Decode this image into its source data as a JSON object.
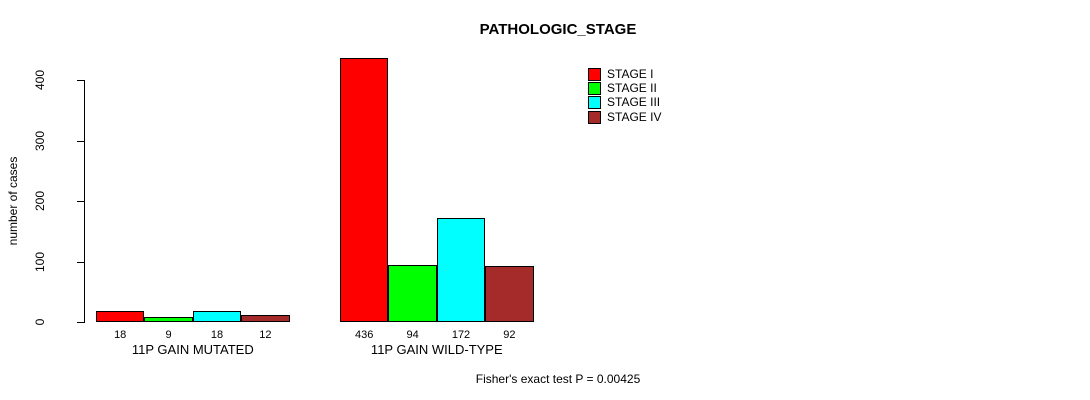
{
  "title": "PATHOLOGIC_STAGE",
  "footer": "Fisher's exact test P = 0.00425",
  "chart_data": {
    "type": "bar",
    "title": "PATHOLOGIC_STAGE",
    "categories": [
      "11P GAIN MUTATED",
      "11P GAIN WILD-TYPE"
    ],
    "series": [
      {
        "name": "STAGE I",
        "color": "#FF0000",
        "values": [
          18,
          436
        ]
      },
      {
        "name": "STAGE II",
        "color": "#00FF00",
        "values": [
          9,
          94
        ]
      },
      {
        "name": "STAGE III",
        "color": "#00FFFF",
        "values": [
          18,
          172
        ]
      },
      {
        "name": "STAGE IV",
        "color": "#A52A2A",
        "values": [
          12,
          92
        ]
      }
    ],
    "xlabel": "",
    "ylabel": "number of cases",
    "yticks": [
      0,
      100,
      200,
      300,
      400
    ],
    "ylim": [
      0,
      400
    ],
    "grid": false,
    "bar_value_labels_shown": true,
    "legend_position": "top-right",
    "annotation": "Fisher's exact test P = 0.00425"
  }
}
